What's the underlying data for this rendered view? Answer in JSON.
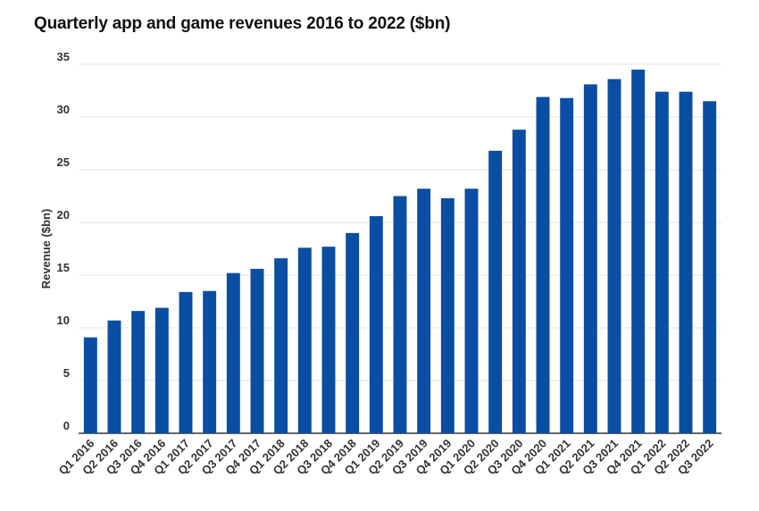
{
  "chart_data": {
    "type": "bar",
    "title": "Quarterly app and game revenues 2016 to 2022 ($bn)",
    "xlabel": "",
    "ylabel": "Revenue ($bn)",
    "ylim": [
      0,
      35
    ],
    "yticks": [
      "0",
      "5",
      "10",
      "15",
      "20",
      "25",
      "30",
      "35"
    ],
    "grid": true,
    "bar_color": "#0a4ea3",
    "categories": [
      "Q1 2016",
      "Q2 2016",
      "Q3 2016",
      "Q4 2016",
      "Q1 2017",
      "Q2 2017",
      "Q3 2017",
      "Q4 2017",
      "Q1 2018",
      "Q2 2018",
      "Q3 2018",
      "Q4 2018",
      "Q1 2019",
      "Q2 2019",
      "Q3 2019",
      "Q4 2019",
      "Q1 2020",
      "Q2 2020",
      "Q3 2020",
      "Q4 2020",
      "Q1 2021",
      "Q2 2021",
      "Q3 2021",
      "Q4 2021",
      "Q1 2022",
      "Q2 2022",
      "Q3 2022"
    ],
    "values": [
      9.1,
      10.7,
      11.6,
      11.9,
      13.4,
      13.5,
      15.2,
      15.6,
      16.6,
      17.6,
      17.7,
      19.0,
      20.6,
      22.5,
      23.2,
      22.3,
      23.2,
      26.8,
      28.8,
      31.9,
      31.8,
      33.1,
      33.6,
      34.5,
      32.4,
      32.4,
      31.5
    ]
  }
}
